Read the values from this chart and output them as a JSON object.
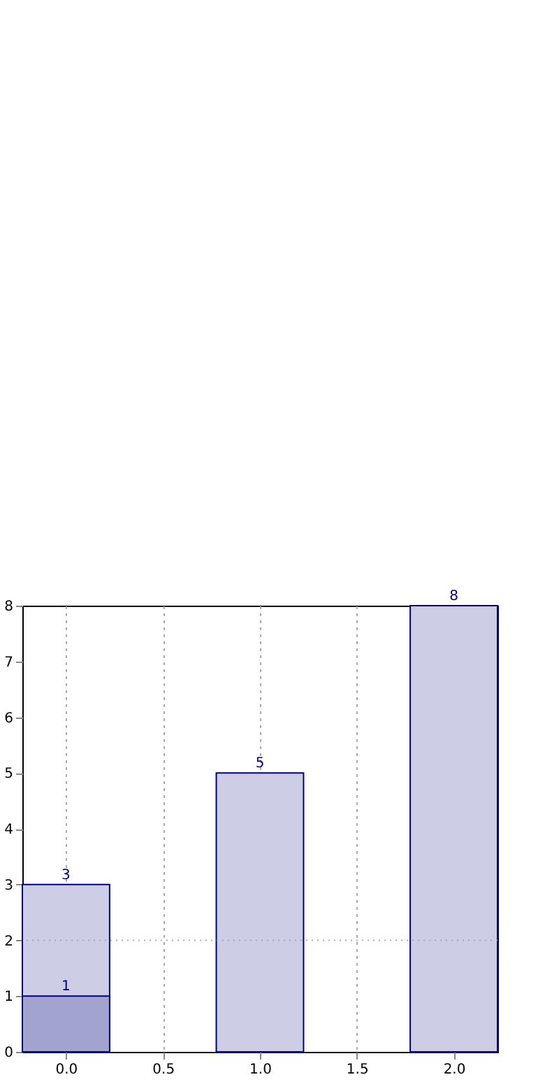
{
  "chart_data": {
    "type": "bar",
    "x": [
      0,
      1,
      2
    ],
    "series": [
      {
        "color": "#cdcde5",
        "values": [
          3,
          5,
          8
        ]
      },
      {
        "color": "#a3a3d0",
        "x": [
          0
        ],
        "values": [
          1
        ]
      }
    ],
    "xlim": [
      -0.225,
      2.225
    ],
    "xticks": [
      {
        "value": 0,
        "label": "0.0"
      },
      {
        "value": 0.5,
        "label": "0.5"
      },
      {
        "value": 1,
        "label": "1.0"
      },
      {
        "value": 1.5,
        "label": "1.5"
      },
      {
        "value": 2,
        "label": "2.0"
      }
    ],
    "ylim": [
      0,
      8
    ],
    "yticks": [
      0,
      1,
      2,
      3,
      4,
      5,
      6,
      7,
      8
    ],
    "grid": "x",
    "data_labels": true,
    "ref_lines": [
      {
        "axis": "y",
        "value": 2,
        "line_style": "dotted",
        "color": "#aaaaaa"
      }
    ]
  }
}
